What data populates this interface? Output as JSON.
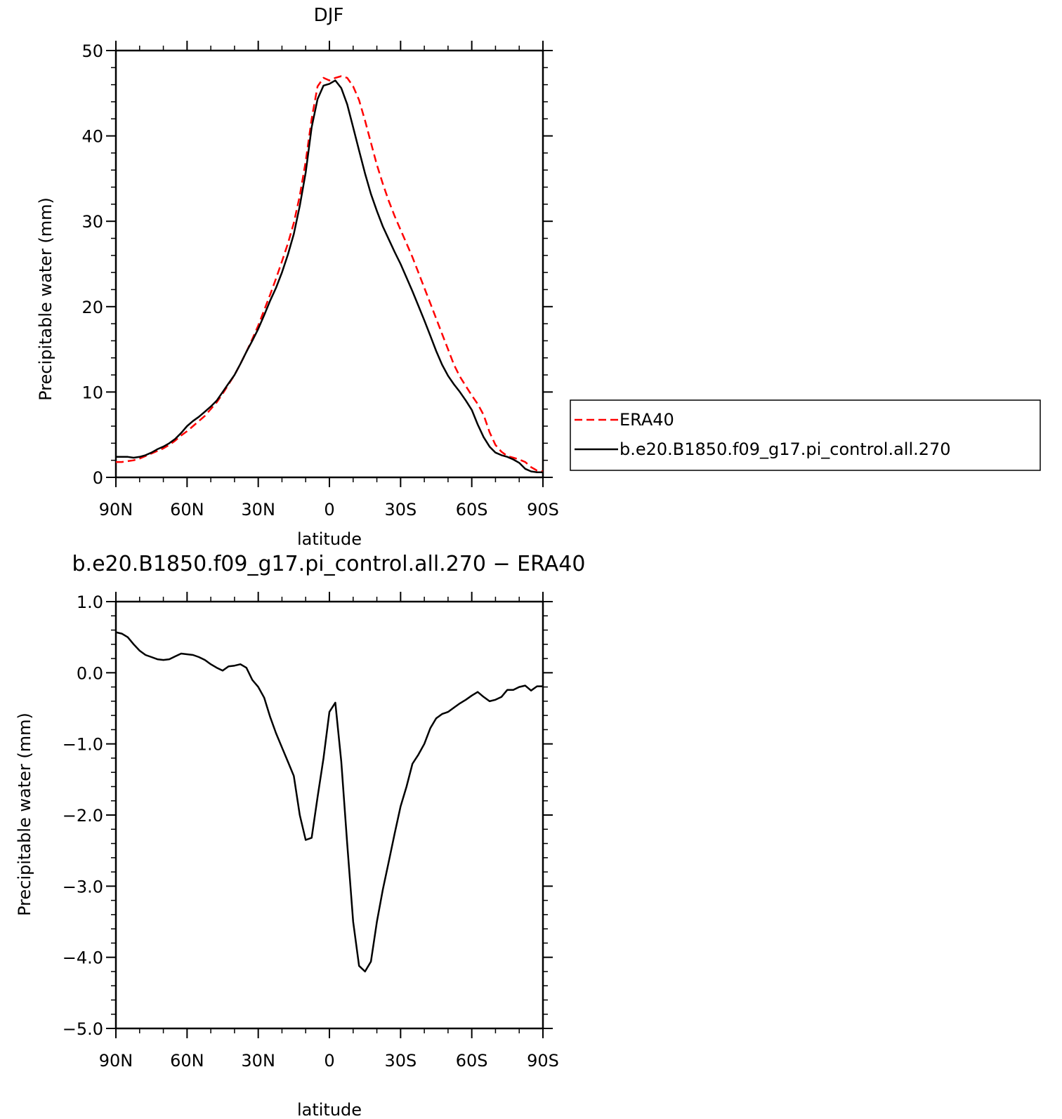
{
  "chart_data": [
    {
      "type": "line",
      "title": "DJF",
      "xlabel": "latitude",
      "ylabel": "Precipitable water (mm)",
      "xlim": [
        90,
        -90
      ],
      "ylim": [
        0,
        50
      ],
      "xticks": [
        90,
        60,
        30,
        0,
        -30,
        -60,
        -90
      ],
      "xtick_labels": [
        "90N",
        "60N",
        "30N",
        "0",
        "30S",
        "60S",
        "90S"
      ],
      "yticks": [
        0,
        10,
        20,
        30,
        40,
        50
      ],
      "ytick_labels": [
        "0",
        "10",
        "20",
        "30",
        "40",
        "50"
      ],
      "legend_position": "right, outside plot",
      "series": [
        {
          "name": "ERA40",
          "color": "#ff0000",
          "dash": "dashed",
          "x": [
            90,
            87.5,
            85,
            82.5,
            80,
            77.5,
            75,
            72.5,
            70,
            67.5,
            65,
            62.5,
            60,
            57.5,
            55,
            52.5,
            50,
            47.5,
            45,
            42.5,
            40,
            37.5,
            35,
            32.5,
            30,
            27.5,
            25,
            22.5,
            20,
            17.5,
            15,
            12.5,
            10,
            7.5,
            5,
            2.5,
            0,
            -2.5,
            -5,
            -7.5,
            -10,
            -12.5,
            -15,
            -17.5,
            -20,
            -22.5,
            -25,
            -27.5,
            -30,
            -32.5,
            -35,
            -37.5,
            -40,
            -42.5,
            -45,
            -47.5,
            -50,
            -52.5,
            -55,
            -57.5,
            -60,
            -62.5,
            -65,
            -67.5,
            -70,
            -72.5,
            -75,
            -77.5,
            -80,
            -82.5,
            -85,
            -87.5,
            -90
          ],
          "y": [
            1.8,
            1.8,
            1.9,
            2.0,
            2.2,
            2.5,
            2.8,
            3.1,
            3.4,
            3.8,
            4.3,
            4.9,
            5.4,
            6.0,
            6.6,
            7.2,
            8.0,
            8.8,
            9.8,
            10.9,
            12.0,
            13.3,
            14.7,
            16.2,
            17.8,
            19.6,
            21.4,
            23.3,
            25.3,
            27.4,
            29.8,
            33.0,
            37.0,
            42.0,
            45.8,
            46.8,
            46.5,
            46.8,
            47.0,
            46.8,
            45.8,
            44.2,
            41.8,
            39.2,
            36.6,
            34.4,
            32.4,
            30.6,
            29.0,
            27.4,
            25.8,
            24.0,
            22.2,
            20.4,
            18.6,
            16.8,
            15.0,
            13.2,
            11.8,
            10.7,
            9.6,
            8.6,
            7.3,
            5.3,
            3.8,
            3.0,
            2.5,
            2.3,
            2.1,
            1.8,
            1.2,
            0.8,
            0.7
          ]
        },
        {
          "name": "b.e20.B1850.f09_g17.pi_control.all.270",
          "color": "#000000",
          "dash": "solid",
          "x": [
            90,
            87.5,
            85,
            82.5,
            80,
            77.5,
            75,
            72.5,
            70,
            67.5,
            65,
            62.5,
            60,
            57.5,
            55,
            52.5,
            50,
            47.5,
            45,
            42.5,
            40,
            37.5,
            35,
            32.5,
            30,
            27.5,
            25,
            22.5,
            20,
            17.5,
            15,
            12.5,
            10,
            7.5,
            5,
            2.5,
            0,
            -2.5,
            -5,
            -7.5,
            -10,
            -12.5,
            -15,
            -17.5,
            -20,
            -22.5,
            -25,
            -27.5,
            -30,
            -32.5,
            -35,
            -37.5,
            -40,
            -42.5,
            -45,
            -47.5,
            -50,
            -52.5,
            -55,
            -57.5,
            -60,
            -62.5,
            -65,
            -67.5,
            -70,
            -72.5,
            -75,
            -77.5,
            -80,
            -82.5,
            -85,
            -87.5,
            -90
          ],
          "y": [
            2.4,
            2.4,
            2.4,
            2.3,
            2.4,
            2.6,
            2.9,
            3.3,
            3.6,
            4.0,
            4.5,
            5.2,
            6.0,
            6.6,
            7.1,
            7.7,
            8.3,
            9.0,
            10.0,
            11.0,
            12.0,
            13.3,
            14.7,
            16.0,
            17.4,
            19.0,
            20.7,
            22.2,
            24.0,
            26.1,
            28.5,
            31.8,
            35.7,
            41.0,
            44.3,
            45.9,
            46.1,
            46.5,
            45.6,
            43.7,
            41.0,
            38.3,
            35.6,
            33.2,
            31.2,
            29.4,
            27.9,
            26.4,
            25.0,
            23.4,
            21.8,
            20.1,
            18.4,
            16.6,
            14.8,
            13.2,
            11.9,
            10.9,
            10.0,
            9.0,
            7.9,
            6.2,
            4.7,
            3.6,
            2.9,
            2.6,
            2.4,
            2.1,
            1.7,
            1.0,
            0.7,
            0.6,
            0.6
          ]
        }
      ]
    },
    {
      "type": "line",
      "title": "b.e20.B1850.f09_g17.pi_control.all.270 − ERA40",
      "xlabel": "latitude",
      "ylabel": "Precipitable water (mm)",
      "xlim": [
        90,
        -90
      ],
      "ylim": [
        -5.0,
        1.0
      ],
      "xticks": [
        90,
        60,
        30,
        0,
        -30,
        -60,
        -90
      ],
      "xtick_labels": [
        "90N",
        "60N",
        "30N",
        "0",
        "30S",
        "60S",
        "90S"
      ],
      "yticks": [
        1.0,
        0.0,
        -1.0,
        -2.0,
        -3.0,
        -4.0,
        -5.0
      ],
      "ytick_labels": [
        "1.0",
        "0.0",
        "−1.0",
        "−2.0",
        "−3.0",
        "−4.0",
        "−5.0"
      ],
      "series": [
        {
          "color": "#000000",
          "dash": "solid",
          "x": [
            90,
            87.5,
            85,
            82.5,
            80,
            77.5,
            75,
            72.5,
            70,
            67.5,
            65,
            62.5,
            60,
            57.5,
            55,
            52.5,
            50,
            47.5,
            45,
            42.5,
            40,
            37.5,
            35,
            32.5,
            30,
            27.5,
            25,
            22.5,
            20,
            17.5,
            15,
            12.5,
            10,
            7.5,
            5,
            2.5,
            0,
            -2.5,
            -5,
            -7.5,
            -10,
            -12.5,
            -15,
            -17.5,
            -20,
            -22.5,
            -25,
            -27.5,
            -30,
            -32.5,
            -35,
            -37.5,
            -40,
            -42.5,
            -45,
            -47.5,
            -50,
            -52.5,
            -55,
            -57.5,
            -60,
            -62.5,
            -65,
            -67.5,
            -70,
            -72.5,
            -75,
            -77.5,
            -80,
            -82.5,
            -85,
            -87.5,
            -90
          ],
          "y": [
            0.57,
            0.55,
            0.5,
            0.4,
            0.31,
            0.25,
            0.22,
            0.19,
            0.18,
            0.19,
            0.23,
            0.27,
            0.26,
            0.25,
            0.22,
            0.18,
            0.12,
            0.07,
            0.03,
            0.09,
            0.1,
            0.12,
            0.07,
            -0.1,
            -0.2,
            -0.35,
            -0.62,
            -0.85,
            -1.05,
            -1.25,
            -1.45,
            -2.0,
            -2.35,
            -2.32,
            -1.75,
            -1.2,
            -0.55,
            -0.42,
            -1.25,
            -2.4,
            -3.5,
            -4.12,
            -4.2,
            -4.06,
            -3.5,
            -3.05,
            -2.66,
            -2.26,
            -1.88,
            -1.6,
            -1.28,
            -1.15,
            -1.0,
            -0.78,
            -0.64,
            -0.58,
            -0.55,
            -0.49,
            -0.43,
            -0.38,
            -0.32,
            -0.27,
            -0.34,
            -0.4,
            -0.38,
            -0.34,
            -0.24,
            -0.24,
            -0.2,
            -0.18,
            -0.25,
            -0.19,
            -0.19
          ]
        }
      ]
    }
  ]
}
